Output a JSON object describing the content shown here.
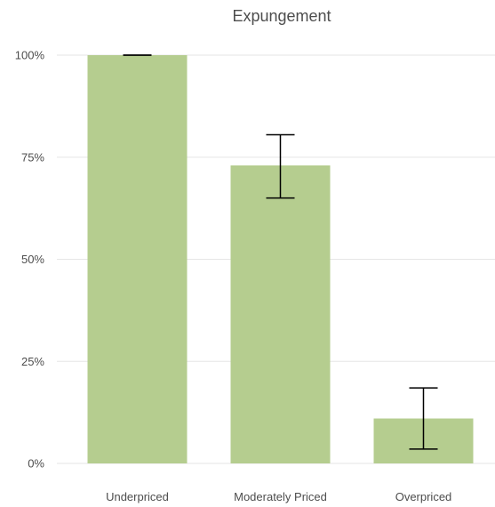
{
  "chart_data": {
    "type": "bar",
    "title": "Expungement",
    "xlabel": "",
    "ylabel": "",
    "categories": [
      "Underpriced",
      "Moderately Priced",
      "Overpriced"
    ],
    "series": [
      {
        "values": [
          1.0,
          0.73,
          0.11
        ],
        "error_low": [
          1.0,
          0.65,
          0.035
        ],
        "error_high": [
          1.0,
          0.805,
          0.185
        ]
      }
    ],
    "ylim": [
      0,
      1
    ],
    "yticks": [
      0,
      0.25,
      0.5,
      0.75,
      1.0
    ],
    "ytick_labels": [
      "0%",
      "25%",
      "50%",
      "75%",
      "100%"
    ],
    "grid": true,
    "legend": "none",
    "colors": {
      "bar": "#b5cd8f",
      "gridline": "#e6e6e6",
      "error_bar": "#000000",
      "text": "#4d4d4d"
    }
  }
}
